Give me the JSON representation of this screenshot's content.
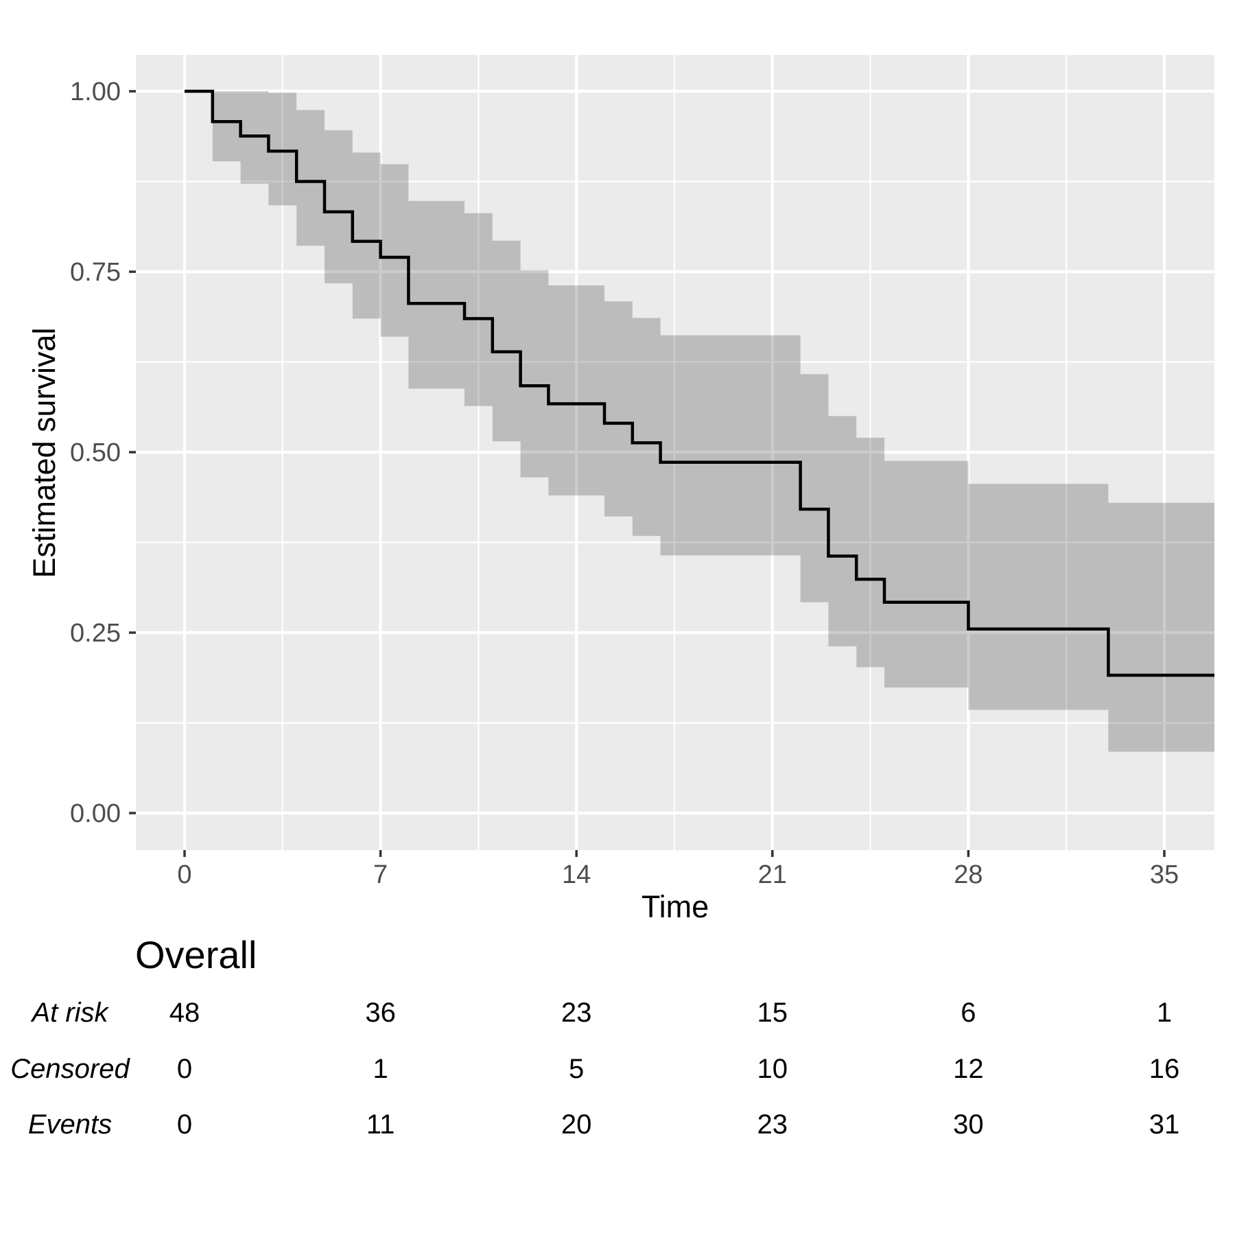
{
  "chart_data": {
    "type": "line",
    "subtype": "kaplan_meier_step",
    "title": "",
    "xlabel": "Time",
    "ylabel": "Estimated survival",
    "xlim": [
      -1.74,
      36.79
    ],
    "ylim": [
      -0.0513,
      1.0504
    ],
    "x_ticks": [
      0,
      7,
      14,
      21,
      28,
      35
    ],
    "x_tick_labels": [
      "0",
      "7",
      "14",
      "21",
      "28",
      "35"
    ],
    "y_ticks": [
      0,
      0.25,
      0.5,
      0.75,
      1
    ],
    "y_tick_labels": [
      "0.00",
      "0.25",
      "0.50",
      "0.75",
      "1.00"
    ],
    "x_minor_ticks": [
      3.5,
      10.5,
      17.5,
      24.5,
      31.5
    ],
    "y_minor_ticks": [
      0.125,
      0.375,
      0.625,
      0.875
    ],
    "grid": true,
    "legend": false,
    "end_time": 36.79,
    "series": [
      {
        "name": "Overall",
        "steps": [
          {
            "t": 0,
            "s": 1.0,
            "lo": null,
            "hi": null
          },
          {
            "t": 1,
            "s": 0.958,
            "lo": 0.903,
            "hi": 1.0
          },
          {
            "t": 2,
            "s": 0.938,
            "lo": 0.872,
            "hi": 1.0
          },
          {
            "t": 3,
            "s": 0.917,
            "lo": 0.842,
            "hi": 0.998
          },
          {
            "t": 4,
            "s": 0.875,
            "lo": 0.786,
            "hi": 0.974
          },
          {
            "t": 5,
            "s": 0.833,
            "lo": 0.734,
            "hi": 0.946
          },
          {
            "t": 6,
            "s": 0.792,
            "lo": 0.685,
            "hi": 0.915
          },
          {
            "t": 7,
            "s": 0.77,
            "lo": 0.66,
            "hi": 0.899
          },
          {
            "t": 8,
            "s": 0.706,
            "lo": 0.588,
            "hi": 0.848
          },
          {
            "t": 10,
            "s": 0.685,
            "lo": 0.564,
            "hi": 0.831
          },
          {
            "t": 11,
            "s": 0.639,
            "lo": 0.515,
            "hi": 0.793
          },
          {
            "t": 12,
            "s": 0.592,
            "lo": 0.465,
            "hi": 0.752
          },
          {
            "t": 13,
            "s": 0.567,
            "lo": 0.44,
            "hi": 0.731
          },
          {
            "t": 15,
            "s": 0.54,
            "lo": 0.411,
            "hi": 0.709
          },
          {
            "t": 16,
            "s": 0.513,
            "lo": 0.384,
            "hi": 0.686
          },
          {
            "t": 17,
            "s": 0.486,
            "lo": 0.357,
            "hi": 0.662
          },
          {
            "t": 22,
            "s": 0.421,
            "lo": 0.292,
            "hi": 0.608
          },
          {
            "t": 23,
            "s": 0.356,
            "lo": 0.231,
            "hi": 0.55
          },
          {
            "t": 24,
            "s": 0.324,
            "lo": 0.202,
            "hi": 0.52
          },
          {
            "t": 25,
            "s": 0.292,
            "lo": 0.174,
            "hi": 0.488
          },
          {
            "t": 28,
            "s": 0.255,
            "lo": 0.143,
            "hi": 0.456
          },
          {
            "t": 33,
            "s": 0.191,
            "lo": 0.085,
            "hi": 0.43
          }
        ]
      }
    ]
  },
  "risk_table": {
    "title": "Overall",
    "times": [
      0,
      7,
      14,
      21,
      28,
      35
    ],
    "rows": [
      {
        "label": "At risk",
        "values": [
          "48",
          "36",
          "23",
          "15",
          "6",
          "1"
        ]
      },
      {
        "label": "Censored",
        "values": [
          "0",
          "1",
          "5",
          "10",
          "12",
          "16"
        ]
      },
      {
        "label": "Events",
        "values": [
          "0",
          "11",
          "20",
          "23",
          "30",
          "31"
        ]
      }
    ]
  },
  "colors": {
    "panel_bg": "#EBEBEB",
    "grid": "#FFFFFF",
    "ci_band": "rgba(0,0,0,0.2)",
    "curve": "#000000",
    "tick_text": "#4D4D4D",
    "axis_title": "#000000",
    "tick_mark": "#333333"
  }
}
